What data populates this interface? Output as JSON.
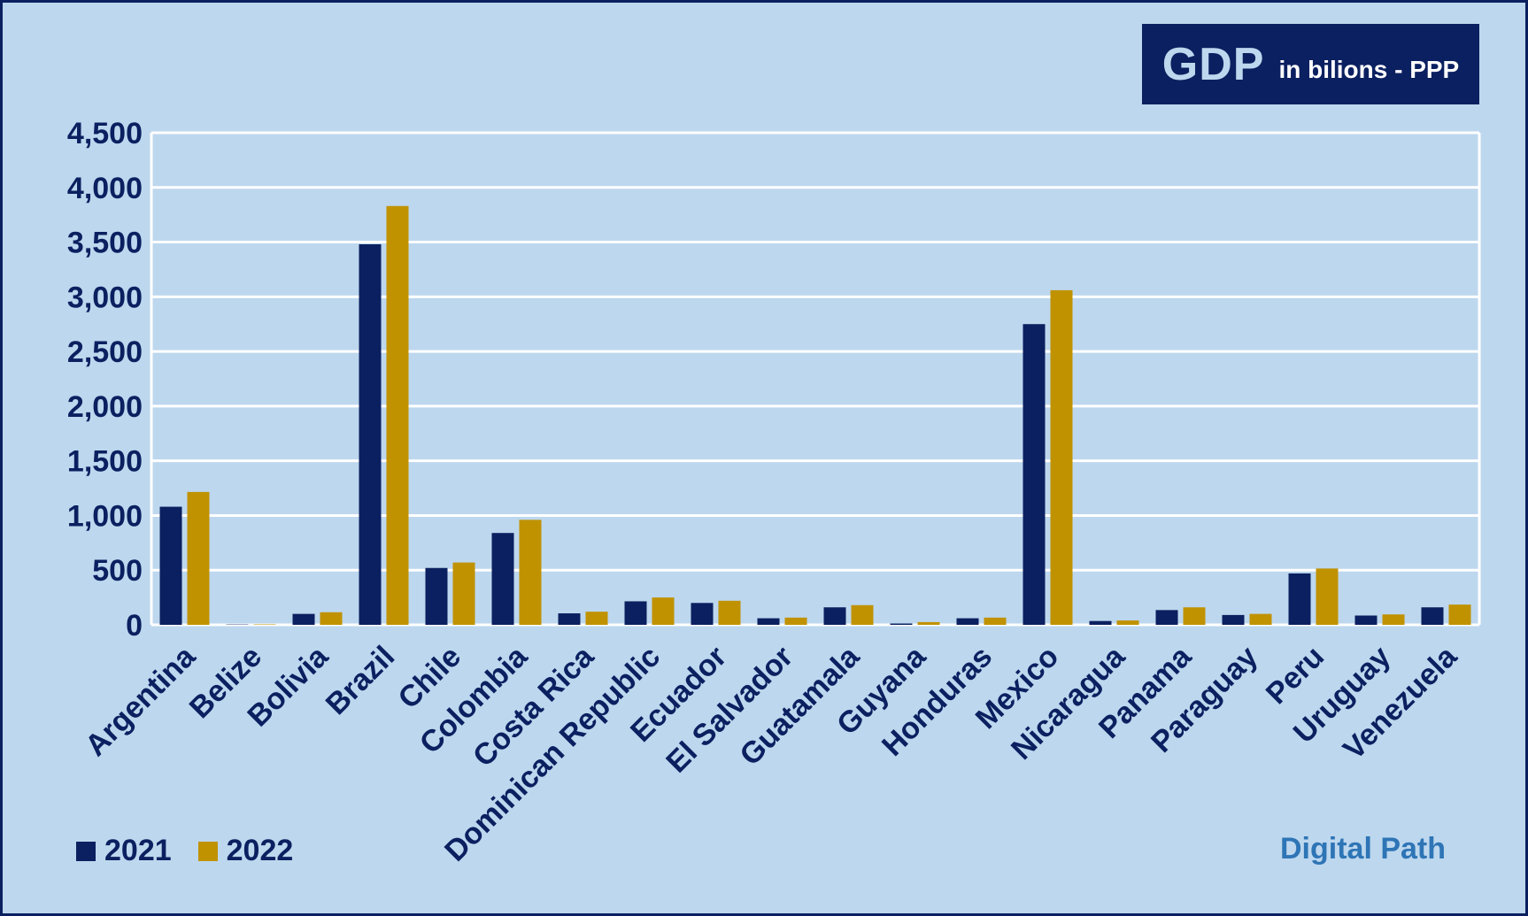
{
  "chart_data": {
    "type": "bar",
    "title": "GDP",
    "subtitle": "in bilions - PPP",
    "categories": [
      "Argentina",
      "Belize",
      "Bolivia",
      "Brazil",
      "Chile",
      "Colombia",
      "Costa Rica",
      "Dominican Republic",
      "Ecuador",
      "El Salvador",
      "Guatamala",
      "Guyana",
      "Honduras",
      "Mexico",
      "Nicaragua",
      "Panama",
      "Paraguay",
      "Peru",
      "Uruguay",
      "Venezuela"
    ],
    "series": [
      {
        "name": "2021",
        "color": "#0B2060",
        "values": [
          1080,
          3,
          100,
          3480,
          520,
          840,
          105,
          215,
          200,
          60,
          160,
          12,
          60,
          2750,
          35,
          135,
          90,
          470,
          85,
          160
        ]
      },
      {
        "name": "2022",
        "color": "#C09200",
        "values": [
          1215,
          4,
          115,
          3830,
          570,
          960,
          120,
          250,
          220,
          66,
          180,
          25,
          66,
          3060,
          40,
          160,
          100,
          515,
          95,
          185
        ]
      }
    ],
    "ylim": [
      0,
      4500
    ],
    "yticks": [
      "0",
      "500",
      "1,000",
      "1,500",
      "2,000",
      "2,500",
      "3,000",
      "3,500",
      "4,000",
      "4,500"
    ],
    "ytick_values": [
      0,
      500,
      1000,
      1500,
      2000,
      2500,
      3000,
      3500,
      4000,
      4500
    ],
    "grid": true,
    "legend_position": "bottom-left",
    "xlabel": "",
    "ylabel": ""
  },
  "credit": "Digital Path"
}
